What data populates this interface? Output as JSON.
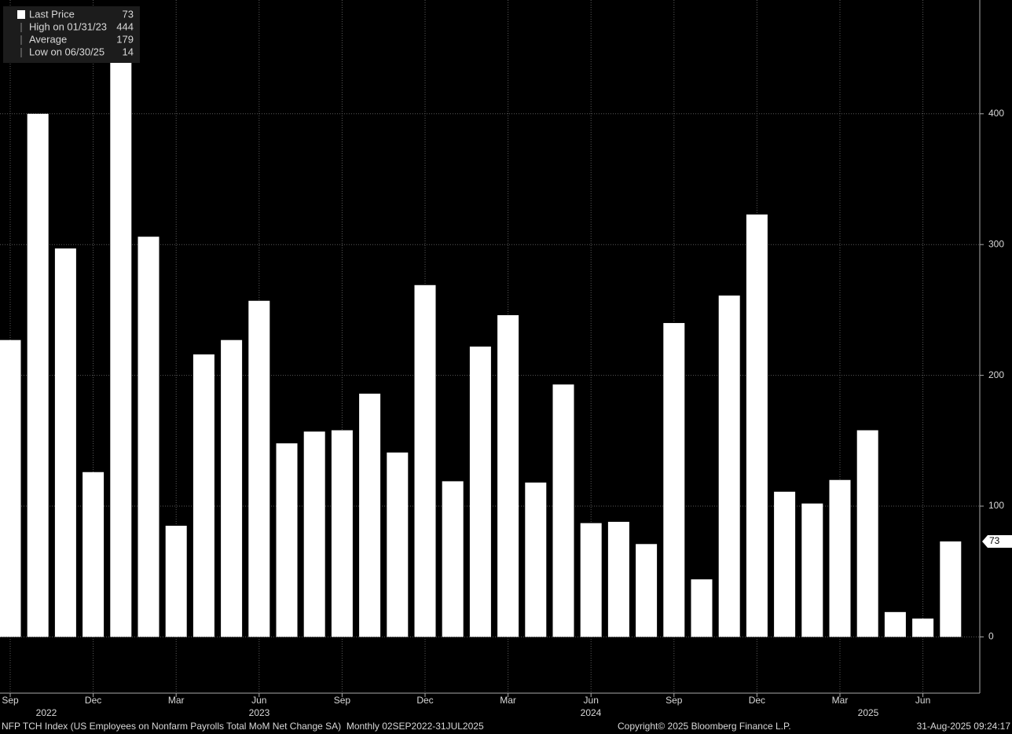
{
  "chart_data": {
    "type": "bar",
    "categories": [
      "Sep",
      null,
      null,
      "Dec",
      null,
      null,
      "Mar",
      null,
      null,
      "Jun",
      null,
      null,
      "Sep",
      null,
      null,
      "Dec",
      null,
      null,
      "Mar",
      null,
      null,
      "Jun",
      null,
      null,
      "Sep",
      null,
      null,
      "Dec",
      null,
      null,
      "Mar",
      null,
      null,
      "Jun",
      null
    ],
    "years": [
      "2022",
      "2023",
      "2024",
      "2025"
    ],
    "values": [
      227,
      400,
      297,
      126,
      444,
      306,
      85,
      216,
      227,
      257,
      148,
      157,
      158,
      186,
      141,
      269,
      119,
      222,
      246,
      118,
      193,
      87,
      88,
      71,
      240,
      44,
      261,
      323,
      111,
      102,
      120,
      158,
      19,
      14,
      73
    ],
    "color": "#ffffff",
    "ylim": [
      -43,
      487
    ],
    "yticks": [
      0,
      100,
      200,
      300,
      400
    ],
    "grid": true,
    "legend": [
      {
        "label": "Last Price",
        "value": 73
      },
      {
        "label": "High on 01/31/23",
        "value": 444
      },
      {
        "label": "Average",
        "value": 179
      },
      {
        "label": "Low on 06/30/25",
        "value": 14
      }
    ]
  },
  "footer": {
    "left": "NFP TCH Index (US Employees on Nonfarm Payrolls Total MoM Net Change SA)  Monthly 02SEP2022-31JUL2025",
    "center": "Copyright© 2025 Bloomberg Finance L.P.",
    "right": "31-Aug-2025 09:24:17"
  }
}
